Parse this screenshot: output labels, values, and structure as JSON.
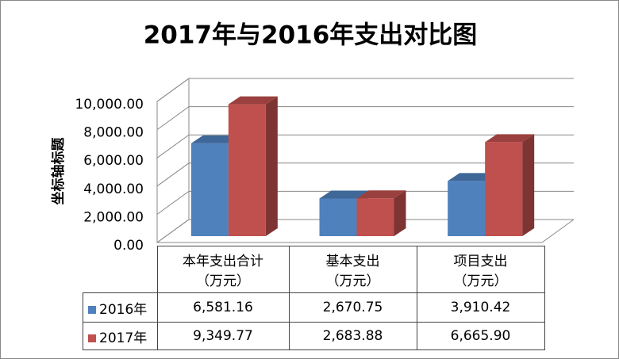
{
  "chart_data": {
    "type": "bar3d",
    "title": "2017年与2016年支出对比图",
    "y_label": "坐标轴标题",
    "categories": [
      "本年支出合计\n（万元）",
      "基本支出\n（万元）",
      "项目支出\n（万元）"
    ],
    "series": [
      {
        "name": "2016年",
        "color": "#4f81bd",
        "values": [
          6581.16,
          2670.75,
          3910.42
        ],
        "value_labels": [
          "6,581.16",
          "2,670.75",
          "3,910.42"
        ]
      },
      {
        "name": "2017年",
        "color": "#c0504d",
        "values": [
          9349.77,
          2683.88,
          6665.9
        ],
        "value_labels": [
          "9,349.77",
          "2,683.88",
          "6,665.90"
        ]
      }
    ],
    "ylim": [
      0,
      10000
    ],
    "yticks": [
      {
        "value": 0,
        "label": "0.00"
      },
      {
        "value": 2000,
        "label": "2,000.00"
      },
      {
        "value": 4000,
        "label": "4,000.00"
      },
      {
        "value": 6000,
        "label": "6,000.00"
      },
      {
        "value": 8000,
        "label": "8,000.00"
      },
      {
        "value": 10000,
        "label": "10,000.00"
      }
    ],
    "grid": true
  }
}
